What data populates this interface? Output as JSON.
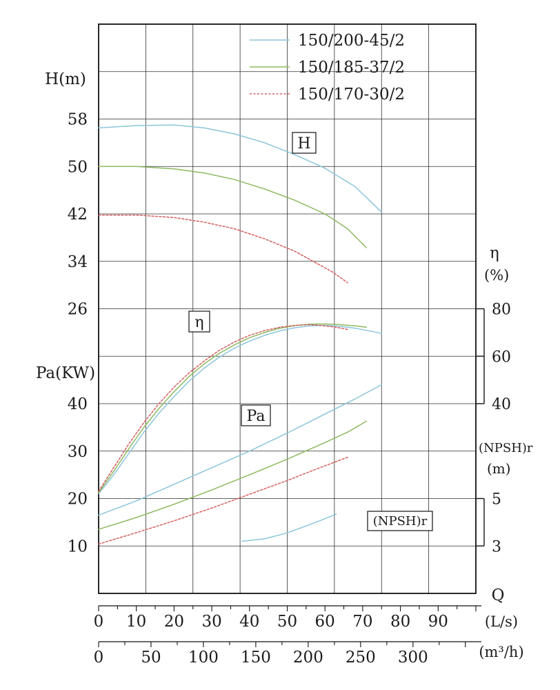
{
  "legend": [
    {
      "label": "150/200-45/2",
      "color": "#8cc5da",
      "dash": ""
    },
    {
      "label": "150/185-37/2",
      "color": "#8db95f",
      "dash": ""
    },
    {
      "label": "150/170-30/2",
      "color": "#d45f5f",
      "dash": "3 2.5"
    }
  ],
  "axes": {
    "left_top": {
      "title": "H(m)",
      "ticks": [
        58,
        50,
        42,
        34,
        26
      ]
    },
    "left_bottom": {
      "title": "Pa(KW)",
      "ticks": [
        40,
        30,
        20,
        10
      ]
    },
    "right_eta": {
      "title": "η",
      "unit": "(%)",
      "ticks": [
        80,
        60,
        40
      ]
    },
    "right_npsh": {
      "title": "(NPSH)r",
      "unit": "(m)",
      "ticks": [
        5,
        3
      ]
    },
    "x_ls": {
      "title": "Q",
      "unit": "(L/s)",
      "ticks": [
        0,
        10,
        20,
        30,
        40,
        50,
        60,
        70,
        80,
        90
      ],
      "max": 100
    },
    "x_m3h": {
      "unit": "(m³/h)",
      "ticks": [
        0,
        50,
        100,
        150,
        200,
        250,
        300
      ],
      "per_ls": 3.6
    }
  },
  "annotations": [
    {
      "text": "H"
    },
    {
      "text": "η"
    },
    {
      "text": "Pa"
    },
    {
      "text": "(NPSH)r"
    }
  ],
  "chart_data": {
    "type": "line",
    "x_unit": "Q (L/s)",
    "x_range": [
      0,
      100
    ],
    "grid": "on",
    "legend_position": "top",
    "axis_ranges": {
      "H_m": [
        26,
        58
      ],
      "Pa_KW": [
        10,
        40
      ],
      "eta_pct": [
        40,
        80
      ],
      "NPSHr_m": [
        3,
        5
      ]
    },
    "groups": [
      {
        "name": "H",
        "axis": "H",
        "ylabel": "H(m)",
        "series": [
          {
            "model": "150/200-45/2",
            "points": [
              [
                0,
                56.5
              ],
              [
                10,
                56.9
              ],
              [
                20,
                57
              ],
              [
                28,
                56.5
              ],
              [
                36,
                55.5
              ],
              [
                44,
                54
              ],
              [
                52,
                52
              ],
              [
                60,
                49.7
              ],
              [
                68,
                46.6
              ],
              [
                75,
                42.3
              ]
            ]
          },
          {
            "model": "150/185-37/2",
            "points": [
              [
                0,
                50
              ],
              [
                10,
                50
              ],
              [
                20,
                49.6
              ],
              [
                28,
                48.9
              ],
              [
                36,
                47.8
              ],
              [
                44,
                46.2
              ],
              [
                52,
                44.3
              ],
              [
                60,
                42
              ],
              [
                66,
                39.5
              ],
              [
                71,
                36.3
              ]
            ]
          },
          {
            "model": "150/170-30/2",
            "points": [
              [
                0,
                41.8
              ],
              [
                10,
                41.8
              ],
              [
                20,
                41.4
              ],
              [
                28,
                40.6
              ],
              [
                36,
                39.5
              ],
              [
                44,
                37.8
              ],
              [
                52,
                35.7
              ],
              [
                58,
                33.6
              ],
              [
                62,
                32.2
              ],
              [
                66,
                30.4
              ]
            ]
          }
        ]
      },
      {
        "name": "eta",
        "axis": "eta",
        "ylabel": "η (%)",
        "series": [
          {
            "model": "150/200-45/2",
            "points": [
              [
                0,
                2
              ],
              [
                4,
                10
              ],
              [
                8,
                19
              ],
              [
                12,
                28
              ],
              [
                16,
                36
              ],
              [
                20,
                43
              ],
              [
                24,
                49.5
              ],
              [
                28,
                55
              ],
              [
                32,
                59.6
              ],
              [
                36,
                63.4
              ],
              [
                40,
                66.4
              ],
              [
                44,
                68.8
              ],
              [
                48,
                70.7
              ],
              [
                52,
                72
              ],
              [
                56,
                72.8
              ],
              [
                60,
                73
              ],
              [
                64,
                72.6
              ],
              [
                68,
                71.8
              ],
              [
                72,
                70.6
              ],
              [
                75,
                69.6
              ]
            ]
          },
          {
            "model": "150/185-37/2",
            "points": [
              [
                0,
                2.5
              ],
              [
                4,
                11.5
              ],
              [
                8,
                21
              ],
              [
                12,
                30
              ],
              [
                16,
                38
              ],
              [
                20,
                45
              ],
              [
                24,
                51.5
              ],
              [
                28,
                56.8
              ],
              [
                32,
                61.2
              ],
              [
                36,
                64.8
              ],
              [
                40,
                67.8
              ],
              [
                44,
                70
              ],
              [
                48,
                71.8
              ],
              [
                52,
                72.9
              ],
              [
                56,
                73.5
              ],
              [
                60,
                73.6
              ],
              [
                64,
                73.3
              ],
              [
                68,
                72.8
              ],
              [
                71,
                72.2
              ]
            ]
          },
          {
            "model": "150/170-30/2",
            "points": [
              [
                0,
                3
              ],
              [
                4,
                13
              ],
              [
                8,
                23
              ],
              [
                12,
                32
              ],
              [
                16,
                40
              ],
              [
                20,
                47
              ],
              [
                24,
                53
              ],
              [
                28,
                58
              ],
              [
                32,
                62.5
              ],
              [
                36,
                66
              ],
              [
                40,
                68.8
              ],
              [
                44,
                70.8
              ],
              [
                48,
                72.2
              ],
              [
                52,
                73
              ],
              [
                56,
                73.3
              ],
              [
                60,
                72.8
              ],
              [
                63,
                72.2
              ],
              [
                66,
                71.3
              ]
            ]
          }
        ]
      },
      {
        "name": "Pa",
        "axis": "Pa",
        "ylabel": "Pa(KW)",
        "series": [
          {
            "model": "150/200-45/2",
            "points": [
              [
                0,
                16.5
              ],
              [
                10,
                19.5
              ],
              [
                20,
                23
              ],
              [
                30,
                26.5
              ],
              [
                40,
                30
              ],
              [
                50,
                33.8
              ],
              [
                60,
                37.8
              ],
              [
                68,
                41
              ],
              [
                75,
                44
              ]
            ]
          },
          {
            "model": "150/185-37/2",
            "points": [
              [
                0,
                13.5
              ],
              [
                10,
                16
              ],
              [
                20,
                18.8
              ],
              [
                30,
                21.8
              ],
              [
                40,
                25
              ],
              [
                50,
                28.3
              ],
              [
                60,
                31.8
              ],
              [
                66,
                34
              ],
              [
                71,
                36.3
              ]
            ]
          },
          {
            "model": "150/170-30/2",
            "points": [
              [
                0,
                10.4
              ],
              [
                10,
                12.8
              ],
              [
                20,
                15.3
              ],
              [
                30,
                18
              ],
              [
                40,
                20.9
              ],
              [
                50,
                23.8
              ],
              [
                58,
                26.3
              ],
              [
                66,
                28.7
              ]
            ]
          }
        ]
      },
      {
        "name": "NPSHr",
        "axis": "npsh",
        "ylabel": "(NPSH)r (m)",
        "series": [
          {
            "model": "150/200-45/2",
            "points": [
              [
                38,
                3.2
              ],
              [
                44,
                3.3
              ],
              [
                50,
                3.55
              ],
              [
                56,
                3.9
              ],
              [
                60,
                4.15
              ],
              [
                63,
                4.35
              ]
            ]
          }
        ]
      }
    ]
  }
}
